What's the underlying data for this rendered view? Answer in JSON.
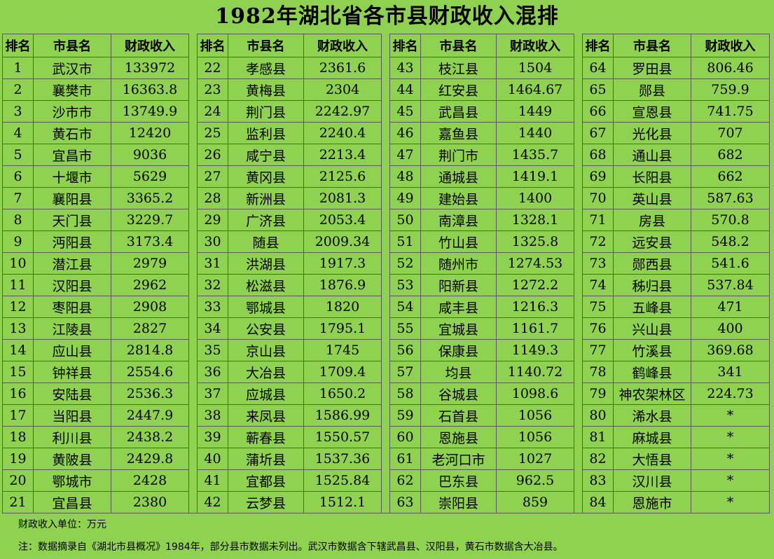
{
  "title": "1982年湖北省各市县财政收入混排",
  "headers": {
    "rank": "排名",
    "name": "市县名",
    "revenue": "财政收入"
  },
  "unit_note": "财政收入单位：万元",
  "source_note": "注：数据摘录自《湖北市县概况》1984年，部分县市数据未列出。武汉市数据含下辖武昌县、汉阳县，黄石市数据含大冶县。",
  "rows": [
    [
      "1",
      "武汉市",
      "133972"
    ],
    [
      "2",
      "襄樊市",
      "16363.8"
    ],
    [
      "3",
      "沙市市",
      "13749.9"
    ],
    [
      "4",
      "黄石市",
      "12420"
    ],
    [
      "5",
      "宜昌市",
      "9036"
    ],
    [
      "6",
      "十堰市",
      "5629"
    ],
    [
      "7",
      "襄阳县",
      "3365.2"
    ],
    [
      "8",
      "天门县",
      "3229.7"
    ],
    [
      "9",
      "沔阳县",
      "3173.4"
    ],
    [
      "10",
      "潜江县",
      "2979"
    ],
    [
      "11",
      "汉阳县",
      "2962"
    ],
    [
      "12",
      "枣阳县",
      "2908"
    ],
    [
      "13",
      "江陵县",
      "2827"
    ],
    [
      "14",
      "应山县",
      "2814.8"
    ],
    [
      "15",
      "钟祥县",
      "2554.6"
    ],
    [
      "16",
      "安陆县",
      "2536.3"
    ],
    [
      "17",
      "当阳县",
      "2447.9"
    ],
    [
      "18",
      "利川县",
      "2438.2"
    ],
    [
      "19",
      "黄陂县",
      "2429.8"
    ],
    [
      "20",
      "鄂城市",
      "2428"
    ],
    [
      "21",
      "宜昌县",
      "2380"
    ],
    [
      "22",
      "孝感县",
      "2361.6"
    ],
    [
      "23",
      "黄梅县",
      "2304"
    ],
    [
      "24",
      "荆门县",
      "2242.97"
    ],
    [
      "25",
      "监利县",
      "2240.4"
    ],
    [
      "26",
      "咸宁县",
      "2213.4"
    ],
    [
      "27",
      "黄冈县",
      "2125.6"
    ],
    [
      "28",
      "新洲县",
      "2081.3"
    ],
    [
      "29",
      "广济县",
      "2053.4"
    ],
    [
      "30",
      "随县",
      "2009.34"
    ],
    [
      "31",
      "洪湖县",
      "1917.3"
    ],
    [
      "32",
      "松滋县",
      "1876.9"
    ],
    [
      "33",
      "鄂城县",
      "1820"
    ],
    [
      "34",
      "公安县",
      "1795.1"
    ],
    [
      "35",
      "京山县",
      "1745"
    ],
    [
      "36",
      "大冶县",
      "1709.4"
    ],
    [
      "37",
      "应城县",
      "1650.2"
    ],
    [
      "38",
      "来凤县",
      "1586.99"
    ],
    [
      "39",
      "蕲春县",
      "1550.57"
    ],
    [
      "40",
      "蒲圻县",
      "1537.36"
    ],
    [
      "41",
      "宜都县",
      "1525.84"
    ],
    [
      "42",
      "云梦县",
      "1512.1"
    ],
    [
      "43",
      "枝江县",
      "1504"
    ],
    [
      "44",
      "红安县",
      "1464.67"
    ],
    [
      "45",
      "武昌县",
      "1449"
    ],
    [
      "46",
      "嘉鱼县",
      "1440"
    ],
    [
      "47",
      "荆门市",
      "1435.7"
    ],
    [
      "48",
      "通城县",
      "1419.1"
    ],
    [
      "49",
      "建始县",
      "1400"
    ],
    [
      "50",
      "南漳县",
      "1328.1"
    ],
    [
      "51",
      "竹山县",
      "1325.8"
    ],
    [
      "52",
      "随州市",
      "1274.53"
    ],
    [
      "53",
      "阳新县",
      "1272.2"
    ],
    [
      "54",
      "咸丰县",
      "1216.3"
    ],
    [
      "55",
      "宜城县",
      "1161.7"
    ],
    [
      "56",
      "保康县",
      "1149.3"
    ],
    [
      "57",
      "均县",
      "1140.72"
    ],
    [
      "58",
      "谷城县",
      "1098.6"
    ],
    [
      "59",
      "石首县",
      "1056"
    ],
    [
      "60",
      "恩施县",
      "1056"
    ],
    [
      "61",
      "老河口市",
      "1027"
    ],
    [
      "62",
      "巴东县",
      "962.5"
    ],
    [
      "63",
      "崇阳县",
      "859"
    ],
    [
      "64",
      "罗田县",
      "806.46"
    ],
    [
      "65",
      "郧县",
      "759.9"
    ],
    [
      "66",
      "宣恩县",
      "741.75"
    ],
    [
      "67",
      "光化县",
      "707"
    ],
    [
      "68",
      "通山县",
      "682"
    ],
    [
      "69",
      "长阳县",
      "662"
    ],
    [
      "70",
      "英山县",
      "587.63"
    ],
    [
      "71",
      "房县",
      "570.8"
    ],
    [
      "72",
      "远安县",
      "548.2"
    ],
    [
      "73",
      "郧西县",
      "541.6"
    ],
    [
      "74",
      "秭归县",
      "537.84"
    ],
    [
      "75",
      "五峰县",
      "471"
    ],
    [
      "76",
      "兴山县",
      "400"
    ],
    [
      "77",
      "竹溪县",
      "369.68"
    ],
    [
      "78",
      "鹤峰县",
      "341"
    ],
    [
      "79",
      "神农架林区",
      "224.73"
    ],
    [
      "80",
      "浠水县",
      "*"
    ],
    [
      "81",
      "麻城县",
      "*"
    ],
    [
      "82",
      "大悟县",
      "*"
    ],
    [
      "83",
      "汉川县",
      "*"
    ],
    [
      "84",
      "恩施市",
      "*"
    ]
  ]
}
